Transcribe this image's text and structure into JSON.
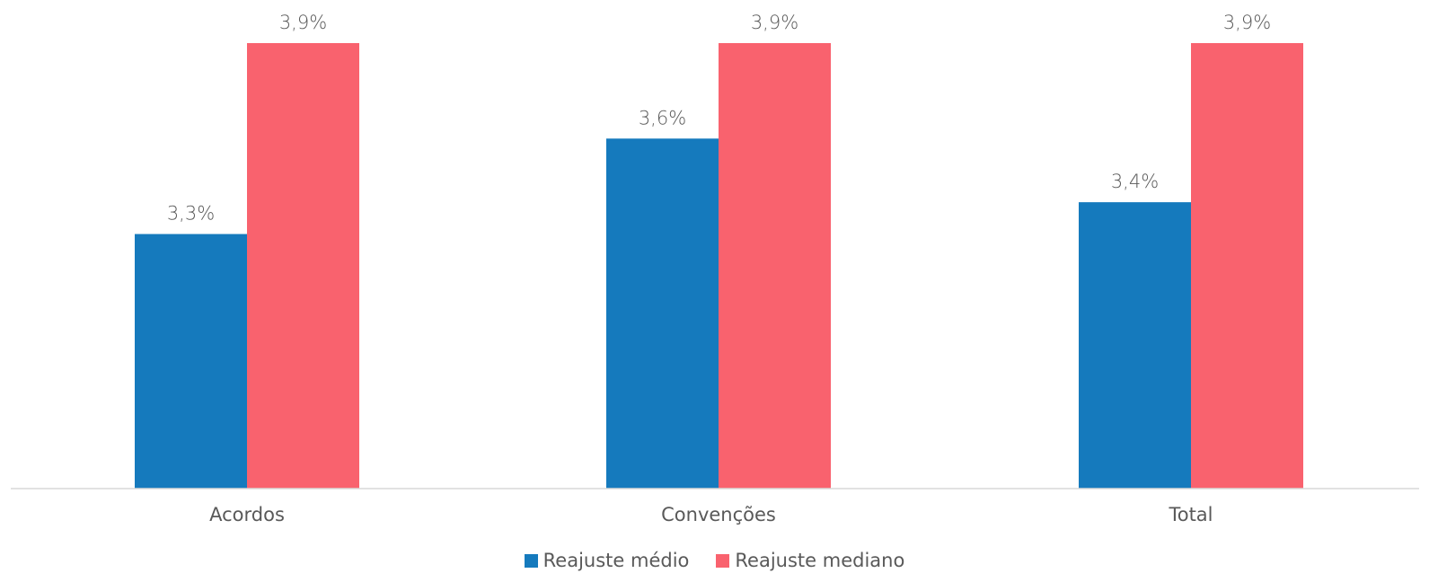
{
  "chart_data": {
    "type": "bar",
    "categories": [
      "Acordos",
      "Convenções",
      "Total"
    ],
    "series": [
      {
        "name": "Reajuste médio",
        "values": [
          3.3,
          3.6,
          3.4
        ],
        "labels": [
          "3,3%",
          "3,6%",
          "3,4%"
        ],
        "color": "#157ABD"
      },
      {
        "name": "Reajuste mediano",
        "values": [
          3.9,
          3.9,
          3.9
        ],
        "labels": [
          "3,9%",
          "3,9%",
          "3,9%"
        ],
        "color": "#F9626E"
      }
    ],
    "title": "",
    "xlabel": "",
    "ylabel": "",
    "ylim": [
      2.5,
      3.9
    ],
    "grid": false,
    "legend": "bottom-center"
  }
}
